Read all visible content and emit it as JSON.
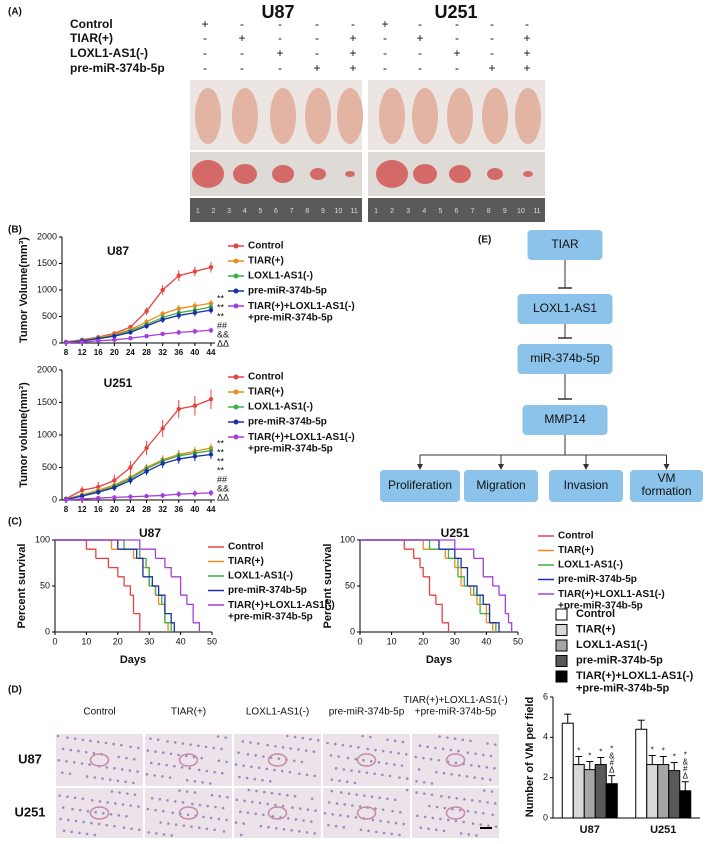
{
  "panel_labels": [
    "(A)",
    "(B)",
    "(C)",
    "(D)",
    "(E)"
  ],
  "panel_a": {
    "groups": [
      "U87",
      "U251"
    ],
    "rows": [
      {
        "label": "Control",
        "signs": [
          "+",
          "-",
          "-",
          "-",
          "-",
          "+",
          "-",
          "-",
          "-",
          "-"
        ]
      },
      {
        "label": "TIAR(+)",
        "signs": [
          "-",
          "+",
          "-",
          "-",
          "+",
          "-",
          "+",
          "-",
          "-",
          "+"
        ]
      },
      {
        "label": "LOXL1-AS1(-)",
        "signs": [
          "-",
          "-",
          "+",
          "-",
          "+",
          "-",
          "-",
          "+",
          "-",
          "+"
        ]
      },
      {
        "label": "pre-miR-374b-5p",
        "signs": [
          "-",
          "-",
          "-",
          "+",
          "+",
          "-",
          "-",
          "-",
          "+",
          "+"
        ]
      }
    ],
    "ruler_labels": [
      "1",
      "2",
      "3",
      "4",
      "5",
      "6",
      "7",
      "8",
      "9",
      "10",
      "11"
    ]
  },
  "chart_data": [
    {
      "type": "line",
      "title": "U87",
      "ylabel": "Tumor Volume(mm³)",
      "x": [
        8,
        12,
        16,
        20,
        24,
        28,
        32,
        36,
        40,
        44
      ],
      "xlim": [
        7,
        45
      ],
      "xticks": [
        8,
        12,
        16,
        20,
        24,
        28,
        32,
        36,
        40,
        44
      ],
      "ylim": [
        0,
        2000
      ],
      "yticks": [
        0,
        500,
        1000,
        1500,
        2000
      ],
      "series": [
        {
          "name": "Control",
          "color": "#e8423f",
          "values": [
            20,
            60,
            110,
            180,
            300,
            600,
            1000,
            1270,
            1350,
            1430
          ],
          "errors": [
            5,
            15,
            20,
            30,
            40,
            70,
            90,
            100,
            90,
            100
          ]
        },
        {
          "name": "TIAR(+)",
          "color": "#f08a1c",
          "values": [
            15,
            50,
            100,
            160,
            250,
            400,
            550,
            650,
            700,
            750
          ],
          "errors": [
            5,
            10,
            15,
            20,
            30,
            50,
            60,
            70,
            70,
            70
          ]
        },
        {
          "name": "LOXL1-AS1(-)",
          "color": "#3cb043",
          "values": [
            15,
            45,
            90,
            140,
            230,
            350,
            480,
            570,
            620,
            680
          ],
          "errors": [
            5,
            10,
            15,
            20,
            30,
            50,
            60,
            70,
            70,
            70
          ]
        },
        {
          "name": "pre-miR-374b-5p",
          "color": "#1a2fa8",
          "values": [
            10,
            40,
            80,
            130,
            200,
            320,
            440,
            520,
            570,
            620
          ],
          "errors": [
            5,
            10,
            15,
            20,
            30,
            50,
            60,
            70,
            70,
            70
          ]
        },
        {
          "name": "TIAR(+)+LOXL1-AS1(-)\n+pre-miR-374b-5p",
          "color": "#a53de0",
          "values": [
            5,
            20,
            40,
            60,
            90,
            130,
            170,
            200,
            220,
            240
          ],
          "errors": [
            3,
            8,
            10,
            15,
            20,
            30,
            40,
            50,
            50,
            50
          ]
        }
      ],
      "annotations": [
        "**",
        "**",
        "**",
        "##",
        "&&",
        "ΔΔ"
      ]
    },
    {
      "type": "line",
      "title": "U251",
      "ylabel": "Tumor volume(mm³)",
      "x": [
        8,
        12,
        16,
        20,
        24,
        28,
        32,
        36,
        40,
        44
      ],
      "xlim": [
        7,
        45
      ],
      "xticks": [
        8,
        12,
        16,
        20,
        24,
        28,
        32,
        36,
        40,
        44
      ],
      "ylim": [
        0,
        2000
      ],
      "yticks": [
        0,
        500,
        1000,
        1500,
        2000
      ],
      "series": [
        {
          "name": "Control",
          "color": "#e8423f",
          "values": [
            20,
            150,
            200,
            300,
            500,
            800,
            1100,
            1400,
            1450,
            1550
          ],
          "errors": [
            5,
            60,
            80,
            90,
            100,
            110,
            130,
            140,
            150,
            150
          ]
        },
        {
          "name": "TIAR(+)",
          "color": "#f08a1c",
          "values": [
            15,
            80,
            150,
            230,
            350,
            500,
            620,
            700,
            750,
            800
          ],
          "errors": [
            5,
            30,
            40,
            50,
            60,
            60,
            70,
            70,
            70,
            70
          ]
        },
        {
          "name": "LOXL1-AS1(-)",
          "color": "#3cb043",
          "values": [
            15,
            70,
            130,
            210,
            330,
            480,
            600,
            680,
            720,
            760
          ],
          "errors": [
            5,
            30,
            40,
            50,
            60,
            60,
            70,
            70,
            70,
            70
          ]
        },
        {
          "name": "pre-miR-374b-5p",
          "color": "#1a2fa8",
          "values": [
            10,
            60,
            120,
            190,
            300,
            440,
            560,
            630,
            670,
            700
          ],
          "errors": [
            5,
            30,
            40,
            50,
            60,
            60,
            70,
            70,
            70,
            70
          ]
        },
        {
          "name": "TIAR(+)+LOXL1-AS1(-)\n+pre-miR-374b-5p",
          "color": "#a53de0",
          "values": [
            5,
            15,
            30,
            40,
            50,
            60,
            70,
            90,
            100,
            110
          ],
          "errors": [
            3,
            10,
            15,
            20,
            25,
            30,
            40,
            50,
            50,
            50
          ]
        }
      ],
      "annotations": [
        "**",
        "**",
        "**",
        "**",
        "##",
        "&&",
        "ΔΔ"
      ]
    },
    {
      "type": "step",
      "title": "U87",
      "ylabel": "Percent survival",
      "xlabel": "Days",
      "xlim": [
        0,
        50
      ],
      "xticks": [
        0,
        10,
        20,
        30,
        40,
        50
      ],
      "ylim": [
        0,
        100
      ],
      "yticks": [
        0,
        50,
        100
      ],
      "series": [
        {
          "name": "Control",
          "color": "#e8423f",
          "x": [
            0,
            10,
            13,
            17,
            20,
            22,
            24,
            25,
            27
          ],
          "values": [
            100,
            90,
            80,
            70,
            60,
            50,
            40,
            20,
            0
          ]
        },
        {
          "name": "TIAR(+)",
          "color": "#f08a1c",
          "x": [
            0,
            18,
            25,
            28,
            30,
            32,
            33,
            35,
            36
          ],
          "values": [
            100,
            90,
            80,
            70,
            50,
            40,
            30,
            10,
            0
          ]
        },
        {
          "name": "LOXL1-AS1(-)",
          "color": "#3cb043",
          "x": [
            0,
            22,
            27,
            29,
            30,
            32,
            34,
            35,
            37
          ],
          "values": [
            100,
            90,
            80,
            70,
            50,
            40,
            30,
            10,
            0
          ]
        },
        {
          "name": "pre-miR-374b-5p",
          "color": "#1a2fa8",
          "x": [
            0,
            20,
            26,
            28,
            31,
            33,
            35,
            37,
            38
          ],
          "values": [
            100,
            90,
            80,
            60,
            50,
            40,
            20,
            10,
            0
          ]
        },
        {
          "name": "TIAR(+)+LOXL1-AS1(-)\n+pre-miR-374b-5p",
          "color": "#a53de0",
          "x": [
            0,
            27,
            32,
            35,
            37,
            40,
            42,
            44,
            46
          ],
          "values": [
            100,
            90,
            80,
            70,
            60,
            40,
            30,
            10,
            0
          ]
        }
      ]
    },
    {
      "type": "step",
      "title": "U251",
      "ylabel": "Percent survival",
      "xlabel": "Days",
      "xlim": [
        0,
        50
      ],
      "xticks": [
        0,
        10,
        20,
        30,
        40,
        50
      ],
      "ylim": [
        0,
        100
      ],
      "yticks": [
        0,
        50,
        100
      ],
      "series": [
        {
          "name": "Control",
          "color": "#e8423f",
          "x": [
            0,
            14,
            17,
            19,
            20,
            22,
            24,
            26,
            28
          ],
          "values": [
            100,
            90,
            80,
            70,
            60,
            40,
            30,
            10,
            0
          ]
        },
        {
          "name": "TIAR(+)",
          "color": "#f08a1c",
          "x": [
            0,
            20,
            27,
            30,
            32,
            35,
            37,
            40,
            42
          ],
          "values": [
            100,
            90,
            80,
            70,
            50,
            40,
            30,
            10,
            0
          ]
        },
        {
          "name": "LOXL1-AS1(-)",
          "color": "#3cb043",
          "x": [
            0,
            22,
            28,
            31,
            33,
            36,
            38,
            41,
            43
          ],
          "values": [
            100,
            90,
            80,
            60,
            50,
            40,
            20,
            10,
            0
          ]
        },
        {
          "name": "pre-miR-374b-5p",
          "color": "#1a2fa8",
          "x": [
            0,
            25,
            30,
            32,
            34,
            37,
            39,
            41,
            44
          ],
          "values": [
            100,
            90,
            80,
            70,
            50,
            40,
            30,
            10,
            0
          ]
        },
        {
          "name": "TIAR(+)+LOXL1-AS1(-)\n+pre-miR-374b-5p",
          "color": "#a53de0",
          "x": [
            0,
            30,
            36,
            39,
            42,
            44,
            46,
            47,
            48
          ],
          "values": [
            100,
            90,
            80,
            60,
            50,
            40,
            20,
            10,
            0
          ]
        }
      ]
    },
    {
      "type": "bar",
      "ylabel": "Number of VM per field",
      "categories": [
        "U87",
        "U251"
      ],
      "ylim": [
        0,
        6
      ],
      "yticks": [
        0,
        2,
        4,
        6
      ],
      "series": [
        {
          "name": "Control",
          "color": "#ffffff",
          "values": [
            4.7,
            4.4
          ],
          "errors": [
            0.45,
            0.45
          ]
        },
        {
          "name": "TIAR(+)",
          "color": "#d9d9d9",
          "values": [
            2.65,
            2.65
          ],
          "errors": [
            0.4,
            0.45
          ],
          "annotations": [
            "*",
            "*"
          ]
        },
        {
          "name": "LOXL1-AS1(-)",
          "color": "#a6a6a6",
          "values": [
            2.4,
            2.65
          ],
          "errors": [
            0.4,
            0.4
          ],
          "annotations": [
            "*",
            "*"
          ]
        },
        {
          "name": "pre-miR-374b-5p",
          "color": "#595959",
          "values": [
            2.65,
            2.35
          ],
          "errors": [
            0.35,
            0.4
          ],
          "annotations": [
            "*",
            "*"
          ]
        },
        {
          "name": "TIAR(+)+LOXL1-AS1(-)\n+pre-miR-374b-5p",
          "color": "#000000",
          "values": [
            1.7,
            1.35
          ],
          "errors": [
            0.4,
            0.45
          ],
          "annotations": [
            "*\n&\n#\nΔ",
            "*\n&\n#\nΔ"
          ]
        }
      ]
    }
  ],
  "panel_d_images": {
    "columns": [
      "Control",
      "TIAR(+)",
      "LOXL1-AS1(-)",
      "pre-miR-374b-5p",
      "TIAR(+)+LOXL1-AS1(-)\n+pre-miR-374b-5p"
    ],
    "rows": [
      "U87",
      "U251"
    ]
  },
  "diagram": {
    "chain": [
      "TIAR",
      "LOXL1-AS1",
      "miR-374b-5p",
      "MMP14"
    ],
    "outputs": [
      "Proliferation",
      "Migration",
      "Invasion",
      "VM\nformation"
    ]
  }
}
